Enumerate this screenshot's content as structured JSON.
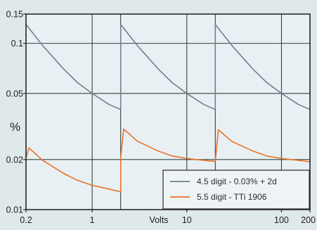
{
  "chart_data": {
    "type": "line",
    "title": "",
    "xlabel": "Volts",
    "ylabel": "%",
    "xscale": "log",
    "yscale": "log",
    "xlim": [
      0.2,
      200
    ],
    "ylim": [
      0.01,
      0.15
    ],
    "x_ticks": [
      {
        "value": 0.2,
        "label": "0.2"
      },
      {
        "value": 1,
        "label": "1"
      },
      {
        "value": 10,
        "label": "10"
      },
      {
        "value": 100,
        "label": "100"
      },
      {
        "value": 200,
        "label": "200"
      }
    ],
    "y_ticks": [
      {
        "value": 0.01,
        "label": "0.01"
      },
      {
        "value": 0.02,
        "label": "0.02"
      },
      {
        "value": 0.05,
        "label": "0.05"
      },
      {
        "value": 0.1,
        "label": "0.1"
      },
      {
        "value": 0.15,
        "label": "0.15"
      }
    ],
    "grid_x": [
      0.2,
      1,
      2,
      10,
      20,
      100,
      200
    ],
    "grid_y": [
      0.01,
      0.02,
      0.05,
      0.1,
      0.15
    ],
    "grid": true,
    "legend_position": "bottom-right",
    "series": [
      {
        "name": "4.5 digit - 0.03% + 2d",
        "color": "#6f8190",
        "segments": [
          {
            "x": [
              0.2,
              0.3,
              0.5,
              0.7,
              1,
              1.5,
              2
            ],
            "y": [
              0.13,
              0.097,
              0.07,
              0.058,
              0.05,
              0.043,
              0.04
            ]
          },
          {
            "x": [
              2,
              3,
              5,
              7,
              10,
              15,
              20
            ],
            "y": [
              0.13,
              0.097,
              0.07,
              0.058,
              0.05,
              0.043,
              0.04
            ]
          },
          {
            "x": [
              20,
              30,
              50,
              70,
              100,
              150,
              200
            ],
            "y": [
              0.13,
              0.097,
              0.07,
              0.058,
              0.05,
              0.043,
              0.04
            ]
          }
        ]
      },
      {
        "name": "5.5 digit - TTi 1906",
        "color": "#e8732a",
        "segments": [
          {
            "x": [
              0.2,
              0.215,
              0.3,
              0.5,
              0.7,
              1,
              1.5,
              2
            ],
            "y": [
              0.0205,
              0.0235,
              0.0198,
              0.0165,
              0.015,
              0.014,
              0.0133,
              0.0128
            ]
          },
          {
            "x": [
              2,
              2.15,
              3,
              5,
              7,
              10,
              15,
              20
            ],
            "y": [
              0.0205,
              0.0305,
              0.0258,
              0.0225,
              0.021,
              0.0203,
              0.0198,
              0.0195
            ]
          },
          {
            "x": [
              20,
              21.5,
              30,
              50,
              70,
              100,
              150,
              200
            ],
            "y": [
              0.0195,
              0.0302,
              0.0257,
              0.0225,
              0.021,
              0.0203,
              0.0198,
              0.0194
            ]
          }
        ]
      }
    ]
  }
}
